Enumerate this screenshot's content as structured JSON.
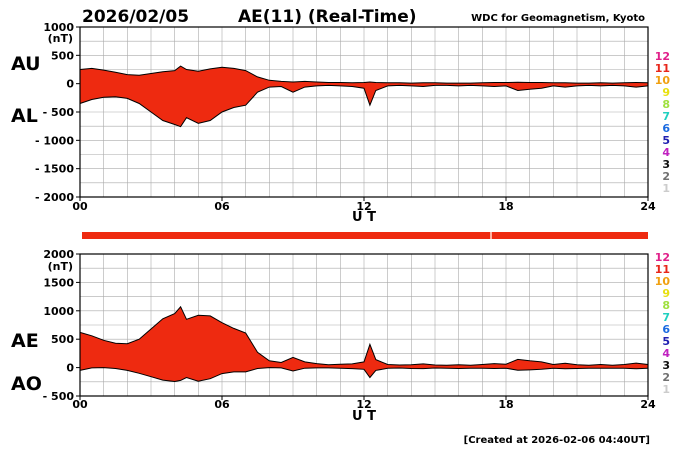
{
  "header": {
    "date": "2026/02/05",
    "title": "AE(11) (Real-Time)",
    "source": "WDC for Geomagnetism, Kyoto",
    "footer": "[Created at 2026-02-06 04:40UT]"
  },
  "colors": {
    "fill": "#ee2a10",
    "line": "#000000",
    "grid": "#aaaaaa"
  },
  "station_legend": [
    {
      "label": "12",
      "color": "#e0208a"
    },
    {
      "label": "11",
      "color": "#e8261a"
    },
    {
      "label": "10",
      "color": "#f0a010"
    },
    {
      "label": "9",
      "color": "#e8e010"
    },
    {
      "label": "8",
      "color": "#a0e040"
    },
    {
      "label": "7",
      "color": "#20d0c0"
    },
    {
      "label": "6",
      "color": "#1a6ae0"
    },
    {
      "label": "5",
      "color": "#2020b0"
    },
    {
      "label": "4",
      "color": "#c020c0"
    },
    {
      "label": "3",
      "color": "#101010"
    },
    {
      "label": "2",
      "color": "#707070"
    },
    {
      "label": "1",
      "color": "#cccccc"
    }
  ],
  "chart_data": [
    {
      "type": "area",
      "panel": "AU/AL",
      "left_labels": [
        "AU",
        "AL"
      ],
      "y_unit": "(nT)",
      "ylim": [
        -2000,
        1000
      ],
      "yticks": [
        1000,
        500,
        0,
        -500,
        -1000,
        -1500,
        -2000
      ],
      "ytick_labels": [
        "1000",
        "500",
        "0",
        "- 500",
        "- 1000",
        "- 1500",
        "- 2000"
      ],
      "xlim": [
        0,
        24
      ],
      "xticks": [
        0,
        6,
        12,
        18,
        24
      ],
      "xtick_labels": [
        "00",
        "06",
        "12",
        "18",
        "24"
      ],
      "xlabel": "U T",
      "grid": true,
      "x": [
        0,
        0.5,
        1,
        1.5,
        2,
        2.5,
        3,
        3.5,
        4,
        4.25,
        4.5,
        5,
        5.5,
        6,
        6.5,
        7,
        7.5,
        8,
        8.5,
        9,
        9.5,
        10,
        10.5,
        11,
        11.5,
        12,
        12.25,
        12.5,
        13,
        13.5,
        14,
        14.5,
        15,
        15.5,
        16,
        16.5,
        17,
        17.5,
        18,
        18.5,
        19,
        19.5,
        20,
        20.5,
        21,
        21.5,
        22,
        22.5,
        23,
        23.5,
        24
      ],
      "series": [
        {
          "name": "AU",
          "values": [
            250,
            270,
            240,
            200,
            160,
            150,
            180,
            210,
            230,
            310,
            250,
            220,
            260,
            290,
            270,
            230,
            120,
            60,
            40,
            30,
            40,
            30,
            20,
            20,
            15,
            20,
            30,
            20,
            15,
            15,
            10,
            15,
            15,
            10,
            10,
            10,
            15,
            20,
            20,
            25,
            20,
            20,
            15,
            15,
            10,
            10,
            15,
            10,
            15,
            20,
            15
          ]
        },
        {
          "name": "AL",
          "values": [
            -350,
            -280,
            -240,
            -230,
            -260,
            -350,
            -500,
            -650,
            -720,
            -760,
            -600,
            -700,
            -650,
            -500,
            -420,
            -380,
            -150,
            -60,
            -50,
            -150,
            -60,
            -40,
            -30,
            -40,
            -50,
            -80,
            -380,
            -120,
            -40,
            -30,
            -40,
            -50,
            -30,
            -30,
            -40,
            -30,
            -40,
            -50,
            -40,
            -120,
            -100,
            -80,
            -40,
            -60,
            -40,
            -30,
            -40,
            -30,
            -40,
            -60,
            -40
          ]
        }
      ]
    },
    {
      "type": "area",
      "panel": "AE/AO",
      "left_labels": [
        "AE",
        "AO"
      ],
      "y_unit": "(nT)",
      "ylim": [
        -500,
        2000
      ],
      "yticks": [
        2000,
        1500,
        1000,
        500,
        0,
        -500
      ],
      "ytick_labels": [
        "2000",
        "1500",
        "1000",
        "500",
        "0",
        "- 500"
      ],
      "xlim": [
        0,
        24
      ],
      "xticks": [
        0,
        6,
        12,
        18,
        24
      ],
      "xtick_labels": [
        "00",
        "06",
        "12",
        "18",
        "24"
      ],
      "xlabel": "U T",
      "grid": true,
      "x": [
        0,
        0.5,
        1,
        1.5,
        2,
        2.5,
        3,
        3.5,
        4,
        4.25,
        4.5,
        5,
        5.5,
        6,
        6.5,
        7,
        7.5,
        8,
        8.5,
        9,
        9.5,
        10,
        10.5,
        11,
        11.5,
        12,
        12.25,
        12.5,
        13,
        13.5,
        14,
        14.5,
        15,
        15.5,
        16,
        16.5,
        17,
        17.5,
        18,
        18.5,
        19,
        19.5,
        20,
        20.5,
        21,
        21.5,
        22,
        22.5,
        23,
        23.5,
        24
      ],
      "series": [
        {
          "name": "AE",
          "values": [
            620,
            560,
            480,
            430,
            420,
            500,
            680,
            860,
            950,
            1070,
            850,
            920,
            910,
            790,
            690,
            610,
            270,
            120,
            90,
            180,
            100,
            70,
            50,
            60,
            65,
            100,
            410,
            140,
            55,
            45,
            50,
            65,
            45,
            40,
            50,
            40,
            55,
            70,
            60,
            145,
            120,
            100,
            55,
            75,
            50,
            40,
            55,
            40,
            55,
            80,
            55
          ]
        },
        {
          "name": "AO",
          "values": [
            -50,
            -5,
            0,
            -15,
            -50,
            -100,
            -160,
            -220,
            -245,
            -225,
            -175,
            -240,
            -195,
            -105,
            -75,
            -75,
            -15,
            0,
            -5,
            -60,
            -10,
            -5,
            -5,
            -10,
            -17,
            -30,
            -175,
            -50,
            -12,
            -7,
            -15,
            -17,
            -7,
            -10,
            -15,
            -10,
            -12,
            -15,
            -10,
            -47,
            -40,
            -30,
            -12,
            -22,
            -15,
            -10,
            -12,
            -10,
            -12,
            -20,
            -12
          ]
        }
      ]
    }
  ]
}
